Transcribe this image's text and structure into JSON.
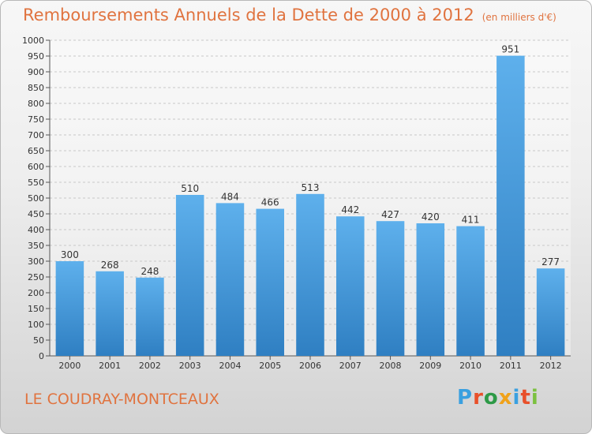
{
  "chart_data": {
    "type": "bar",
    "title": "Remboursements Annuels de la Dette de 2000 à 2012",
    "unit_note": "(en milliers d'€)",
    "categories": [
      "2000",
      "2001",
      "2002",
      "2003",
      "2004",
      "2005",
      "2006",
      "2007",
      "2008",
      "2009",
      "2010",
      "2011",
      "2012"
    ],
    "values": [
      300,
      268,
      248,
      510,
      484,
      466,
      513,
      442,
      427,
      420,
      411,
      951,
      277
    ],
    "ylim": [
      0,
      1000
    ],
    "yticks": [
      0,
      50,
      100,
      150,
      200,
      250,
      300,
      350,
      400,
      450,
      500,
      550,
      600,
      650,
      700,
      750,
      800,
      850,
      900,
      950,
      1000
    ],
    "grid": true,
    "bar_color": "#3a8fd6"
  },
  "location": "LE COUDRAY-MONTCEAUX",
  "logo": {
    "text": "Proxiti",
    "letters": [
      {
        "ch": "P",
        "color": "#3aa0e0"
      },
      {
        "ch": "r",
        "color": "#e8502a"
      },
      {
        "ch": "o",
        "color": "#2d9a47"
      },
      {
        "ch": "x",
        "color": "#f0a21a"
      },
      {
        "ch": "i",
        "color": "#3aa0e0"
      },
      {
        "ch": "t",
        "color": "#e8502a"
      },
      {
        "ch": "i",
        "color": "#7cc140"
      }
    ]
  }
}
